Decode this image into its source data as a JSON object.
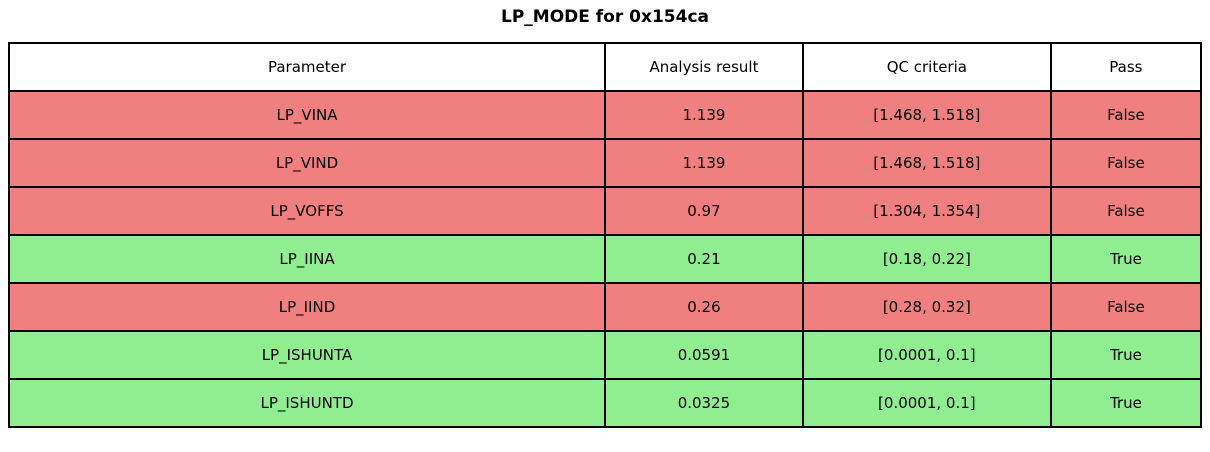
{
  "title": "LP_MODE for 0x154ca",
  "colors": {
    "fail_row_bg": "#F08080",
    "pass_row_bg": "#90EE90",
    "header_bg": "#FFFFFF",
    "border": "#000000",
    "text": "#000000"
  },
  "chart_data": {
    "type": "table",
    "title": "LP_MODE for 0x154ca",
    "columns": [
      "Parameter",
      "Analysis result",
      "QC criteria",
      "Pass"
    ],
    "rows": [
      {
        "parameter": "LP_VINA",
        "analysis_result": "1.139",
        "qc_criteria": "[1.468, 1.518]",
        "pass": "False"
      },
      {
        "parameter": "LP_VIND",
        "analysis_result": "1.139",
        "qc_criteria": "[1.468, 1.518]",
        "pass": "False"
      },
      {
        "parameter": "LP_VOFFS",
        "analysis_result": "0.97",
        "qc_criteria": "[1.304, 1.354]",
        "pass": "False"
      },
      {
        "parameter": "LP_IINA",
        "analysis_result": "0.21",
        "qc_criteria": "[0.18, 0.22]",
        "pass": "True"
      },
      {
        "parameter": "LP_IIND",
        "analysis_result": "0.26",
        "qc_criteria": "[0.28, 0.32]",
        "pass": "False"
      },
      {
        "parameter": "LP_ISHUNTA",
        "analysis_result": "0.0591",
        "qc_criteria": "[0.0001, 0.1]",
        "pass": "True"
      },
      {
        "parameter": "LP_ISHUNTD",
        "analysis_result": "0.0325",
        "qc_criteria": "[0.0001, 0.1]",
        "pass": "True"
      }
    ]
  }
}
